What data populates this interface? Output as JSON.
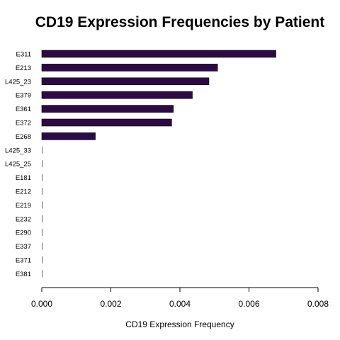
{
  "chart_data": {
    "type": "bar",
    "orientation": "horizontal",
    "title": "CD19 Expression Frequencies by Patient",
    "xlabel": "CD19 Expression Frequency",
    "ylabel": "",
    "xlim": [
      0,
      0.008
    ],
    "xticks": [
      "0.000",
      "0.002",
      "0.004",
      "0.006",
      "0.008"
    ],
    "bar_color": "#2d0a45",
    "grid": false,
    "legend": "none",
    "categories": [
      "E311",
      "E213",
      "L425_23",
      "E379",
      "E361",
      "E372",
      "E268",
      "L425_33",
      "L425_25",
      "E181",
      "E212",
      "E219",
      "E232",
      "E290",
      "E337",
      "E371",
      "E381"
    ],
    "values": [
      0.00678,
      0.00509,
      0.00484,
      0.00436,
      0.00381,
      0.00376,
      0.00155,
      0,
      0,
      0,
      0,
      0,
      0,
      0,
      0,
      0,
      0
    ]
  }
}
